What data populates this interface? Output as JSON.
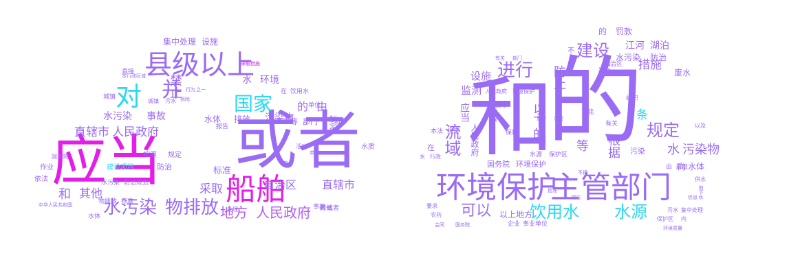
{
  "palette": {
    "magenta": "#e21ee8",
    "purple": "#9a6bf5",
    "cyan": "#2ad8f0",
    "blue": "#5c8cf2",
    "violet": "#b35cf0",
    "pink": "#f040d0"
  },
  "clouds": [
    {
      "name": "left-cloud",
      "words": [
        {
          "t": "或者",
          "c": "#9a6bf5"
        },
        {
          "t": "应当",
          "c": "#e21ee8"
        },
        {
          "t": "船舶",
          "c": "#e21ee8"
        },
        {
          "t": "县级",
          "c": "#9a6bf5"
        },
        {
          "t": "以上",
          "c": "#9a6bf5"
        },
        {
          "t": "对",
          "c": "#2ad8f0"
        },
        {
          "t": "并",
          "c": "#9a6bf5"
        },
        {
          "t": "国家",
          "c": "#2ad8f0"
        },
        {
          "t": "水污染",
          "c": "#9a6bf5"
        },
        {
          "t": "物排放",
          "c": "#9a6bf5"
        },
        {
          "t": "地方",
          "c": "#b35cf0"
        },
        {
          "t": "人民政府",
          "c": "#b35cf0"
        },
        {
          "t": "直辖市",
          "c": "#9a6bf5"
        },
        {
          "t": "自治区",
          "c": "#9a6bf5"
        },
        {
          "t": "直辖市",
          "c": "#9a6bf5"
        },
        {
          "t": "人民政府",
          "c": "#9a6bf5"
        },
        {
          "t": "和",
          "c": "#9a6bf5"
        },
        {
          "t": "其他",
          "c": "#9a6bf5"
        },
        {
          "t": "禁止",
          "c": "#9a6bf5"
        },
        {
          "t": "水污染",
          "c": "#9a6bf5"
        },
        {
          "t": "事故",
          "c": "#9a6bf5"
        },
        {
          "t": "采取",
          "c": "#9a6bf5"
        },
        {
          "t": "的",
          "c": "#9a6bf5"
        },
        {
          "t": "由",
          "c": "#9a6bf5"
        },
        {
          "t": "水",
          "c": "#9a6bf5"
        },
        {
          "t": "环境",
          "c": "#9a6bf5"
        },
        {
          "t": "集中处理",
          "c": "#9a6bf5"
        },
        {
          "t": "设施",
          "c": "#9a6bf5"
        },
        {
          "t": "水体",
          "c": "#9a6bf5"
        },
        {
          "t": "排放",
          "c": "#9a6bf5"
        },
        {
          "t": "污染物",
          "c": "#9a6bf5"
        },
        {
          "t": "的",
          "c": "#9a6bf5"
        },
        {
          "t": "等",
          "c": "#9a6bf5"
        },
        {
          "t": "部门",
          "c": "#9a6bf5"
        },
        {
          "t": "在",
          "c": "#9a6bf5"
        },
        {
          "t": "饮用水",
          "c": "#9a6bf5"
        },
        {
          "t": "单位",
          "c": "#9a6bf5"
        },
        {
          "t": "制定",
          "c": "#9a6bf5"
        },
        {
          "t": "报告",
          "c": "#9a6bf5"
        },
        {
          "t": "标准",
          "c": "#9a6bf5"
        },
        {
          "t": "建设项目",
          "c": "#2ad8f0"
        },
        {
          "t": "防治",
          "c": "#9a6bf5"
        },
        {
          "t": "水污染",
          "c": "#9a6bf5"
        },
        {
          "t": "防治规划",
          "c": "#9a6bf5"
        },
        {
          "t": "物排放",
          "c": "#9a6bf5"
        },
        {
          "t": "标准",
          "c": "#9a6bf5"
        },
        {
          "t": "按照",
          "c": "#9a6bf5"
        },
        {
          "t": "规定",
          "c": "#9a6bf5"
        },
        {
          "t": "作业",
          "c": "#9a6bf5"
        },
        {
          "t": "依法",
          "c": "#9a6bf5"
        },
        {
          "t": "水体",
          "c": "#9a6bf5"
        },
        {
          "t": "城镇",
          "c": "#9a6bf5"
        },
        {
          "t": "直接",
          "c": "#9a6bf5"
        },
        {
          "t": "水质",
          "c": "#9a6bf5"
        },
        {
          "t": "事故",
          "c": "#9a6bf5"
        },
        {
          "t": "的",
          "c": "#9a6bf5"
        },
        {
          "t": "或者",
          "c": "#9a6bf5"
        },
        {
          "t": "其他",
          "c": "#9a6bf5"
        },
        {
          "t": "采取措施",
          "c": "#e21ee8"
        },
        {
          "t": "城镇",
          "c": "#9a6bf5"
        },
        {
          "t": "污水",
          "c": "#9a6bf5"
        },
        {
          "t": "活动",
          "c": "#9a6bf5"
        },
        {
          "t": "处理",
          "c": "#9a6bf5"
        },
        {
          "t": "拆除",
          "c": "#9a6bf5"
        },
        {
          "t": "行为",
          "c": "#9a6bf5"
        },
        {
          "t": "之一",
          "c": "#9a6bf5"
        },
        {
          "t": "本行政区域",
          "c": "#9a6bf5"
        },
        {
          "t": "国务院",
          "c": "#9a6bf5"
        },
        {
          "t": "中华人民共和国",
          "c": "#9a6bf5"
        },
        {
          "t": "单位",
          "c": "#9a6bf5"
        },
        {
          "t": "应当",
          "c": "#9a6bf5"
        }
      ]
    },
    {
      "name": "right-cloud",
      "words": [
        {
          "t": "的",
          "c": "#9a6bf5"
        },
        {
          "t": "和",
          "c": "#9a6bf5"
        },
        {
          "t": "环境保护",
          "c": "#9a6bf5"
        },
        {
          "t": "主管部门",
          "c": "#9a6bf5"
        },
        {
          "t": "饮用水",
          "c": "#2ad8f0"
        },
        {
          "t": "水源",
          "c": "#2ad8f0"
        },
        {
          "t": "可以",
          "c": "#9a6bf5"
        },
        {
          "t": "进行",
          "c": "#9a6bf5"
        },
        {
          "t": "建设",
          "c": "#9a6bf5"
        },
        {
          "t": "规定",
          "c": "#9a6bf5"
        },
        {
          "t": "水",
          "c": "#9a6bf5"
        },
        {
          "t": "污染物",
          "c": "#9a6bf5"
        },
        {
          "t": "流域",
          "c": "#9a6bf5"
        },
        {
          "t": "以下的",
          "c": "#9a6bf5"
        },
        {
          "t": "防止",
          "c": "#9a6bf5"
        },
        {
          "t": "根据",
          "c": "#9a6bf5"
        },
        {
          "t": "措施",
          "c": "#9a6bf5"
        },
        {
          "t": "条",
          "c": "#2ad8f0"
        },
        {
          "t": "江河",
          "c": "#9a6bf5"
        },
        {
          "t": "湖泊",
          "c": "#9a6bf5"
        },
        {
          "t": "水污染",
          "c": "#9a6bf5"
        },
        {
          "t": "防治",
          "c": "#9a6bf5"
        },
        {
          "t": "的",
          "c": "#9a6bf5"
        },
        {
          "t": "罚款",
          "c": "#9a6bf5"
        },
        {
          "t": "设施",
          "c": "#9a6bf5"
        },
        {
          "t": "监测",
          "c": "#9a6bf5"
        },
        {
          "t": "应当",
          "c": "#9a6bf5"
        },
        {
          "t": "人民政府",
          "c": "#9a6bf5"
        },
        {
          "t": "国务院",
          "c": "#9a6bf5"
        },
        {
          "t": "环境保护",
          "c": "#9a6bf5"
        },
        {
          "t": "以上",
          "c": "#9a6bf5"
        },
        {
          "t": "地方",
          "c": "#9a6bf5"
        },
        {
          "t": "企业",
          "c": "#9a6bf5"
        },
        {
          "t": "事业单位",
          "c": "#9a6bf5"
        },
        {
          "t": "向",
          "c": "#9a6bf5"
        },
        {
          "t": "水体",
          "c": "#9a6bf5"
        },
        {
          "t": "等",
          "c": "#9a6bf5"
        },
        {
          "t": "污染",
          "c": "#9a6bf5"
        },
        {
          "t": "废水",
          "c": "#9a6bf5"
        },
        {
          "t": "由",
          "c": "#9a6bf5"
        },
        {
          "t": "县级",
          "c": "#9a6bf5"
        },
        {
          "t": "排放",
          "c": "#9a6bf5"
        },
        {
          "t": "使用",
          "c": "#9a6bf5"
        },
        {
          "t": "保护",
          "c": "#9a6bf5"
        },
        {
          "t": "水源",
          "c": "#9a6bf5"
        },
        {
          "t": "保护区",
          "c": "#9a6bf5"
        },
        {
          "t": "可能",
          "c": "#9a6bf5"
        },
        {
          "t": "有关",
          "c": "#9a6bf5"
        },
        {
          "t": "组织",
          "c": "#9a6bf5"
        },
        {
          "t": "符合",
          "c": "#9a6bf5"
        },
        {
          "t": "自治区",
          "c": "#9a6bf5"
        },
        {
          "t": "生态",
          "c": "#9a6bf5"
        },
        {
          "t": "本法",
          "c": "#9a6bf5"
        },
        {
          "t": "规定",
          "c": "#9a6bf5"
        },
        {
          "t": "在",
          "c": "#9a6bf5"
        },
        {
          "t": "水",
          "c": "#9a6bf5"
        },
        {
          "t": "行政",
          "c": "#9a6bf5"
        },
        {
          "t": "要求",
          "c": "#9a6bf5"
        },
        {
          "t": "农药",
          "c": "#9a6bf5"
        },
        {
          "t": "人民政府",
          "c": "#9a6bf5"
        },
        {
          "t": "环境保护",
          "c": "#9a6bf5"
        },
        {
          "t": "有关",
          "c": "#9a6bf5"
        },
        {
          "t": "部门",
          "c": "#9a6bf5"
        },
        {
          "t": "以及",
          "c": "#9a6bf5"
        },
        {
          "t": "供水",
          "c": "#9a6bf5"
        },
        {
          "t": "污水",
          "c": "#9a6bf5"
        },
        {
          "t": "集中处理",
          "c": "#9a6bf5"
        },
        {
          "t": "保护区",
          "c": "#9a6bf5"
        },
        {
          "t": "内",
          "c": "#9a6bf5"
        },
        {
          "t": "不",
          "c": "#9a6bf5"
        },
        {
          "t": "省",
          "c": "#9a6bf5"
        },
        {
          "t": "地下水",
          "c": "#9a6bf5"
        },
        {
          "t": "信息",
          "c": "#9a6bf5"
        },
        {
          "t": "会同",
          "c": "#9a6bf5"
        },
        {
          "t": "国务院",
          "c": "#9a6bf5"
        },
        {
          "t": "不得",
          "c": "#9a6bf5"
        },
        {
          "t": "批准",
          "c": "#9a6bf5"
        },
        {
          "t": "环境质量",
          "c": "#9a6bf5"
        },
        {
          "t": "重要",
          "c": "#9a6bf5"
        },
        {
          "t": "江河",
          "c": "#9a6bf5"
        },
        {
          "t": "湖泊",
          "c": "#9a6bf5"
        }
      ]
    }
  ]
}
